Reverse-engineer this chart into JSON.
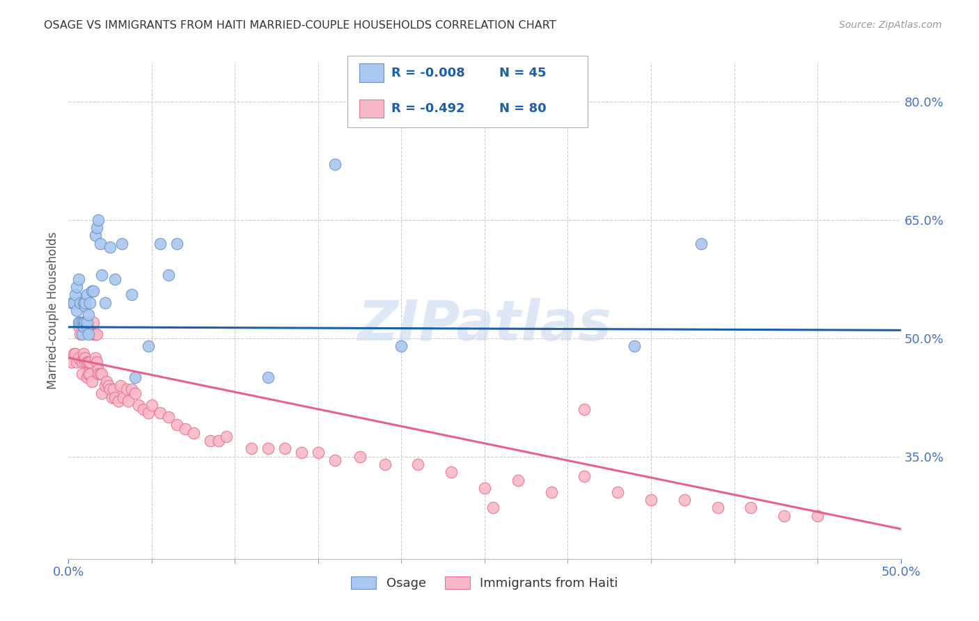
{
  "title": "OSAGE VS IMMIGRANTS FROM HAITI MARRIED-COUPLE HOUSEHOLDS CORRELATION CHART",
  "source": "Source: ZipAtlas.com",
  "ylabel": "Married-couple Households",
  "xlim": [
    0.0,
    0.5
  ],
  "ylim": [
    0.22,
    0.85
  ],
  "xtick_major": [
    0.0,
    0.5
  ],
  "xtick_major_labels": [
    "0.0%",
    "50.0%"
  ],
  "xtick_minor": [
    0.05,
    0.1,
    0.15,
    0.2,
    0.25,
    0.3,
    0.35,
    0.4,
    0.45
  ],
  "ytick_positions": [
    0.35,
    0.5,
    0.65,
    0.8
  ],
  "ytick_labels": [
    "35.0%",
    "50.0%",
    "65.0%",
    "80.0%"
  ],
  "grid_color": "#cccccc",
  "background_color": "#ffffff",
  "legend_r1": "R = -0.008",
  "legend_n1": "N = 45",
  "legend_r2": "R = -0.492",
  "legend_n2": "N = 80",
  "series1_color": "#a8c8f0",
  "series2_color": "#f8b8c8",
  "series1_edge": "#7090c8",
  "series2_edge": "#e87090",
  "trendline1_color": "#1a5fa8",
  "trendline2_color": "#e8608a",
  "watermark": "ZIPatlas",
  "watermark_color": "#c8d8f0",
  "series1_label": "Osage",
  "series2_label": "Immigrants from Haiti",
  "series1_x": [
    0.002,
    0.003,
    0.004,
    0.005,
    0.005,
    0.006,
    0.006,
    0.007,
    0.007,
    0.008,
    0.008,
    0.009,
    0.009,
    0.009,
    0.01,
    0.01,
    0.01,
    0.011,
    0.011,
    0.011,
    0.012,
    0.012,
    0.013,
    0.014,
    0.015,
    0.016,
    0.017,
    0.018,
    0.019,
    0.02,
    0.022,
    0.025,
    0.028,
    0.032,
    0.038,
    0.04,
    0.048,
    0.055,
    0.06,
    0.065,
    0.12,
    0.16,
    0.2,
    0.34,
    0.38
  ],
  "series1_y": [
    0.545,
    0.545,
    0.555,
    0.565,
    0.535,
    0.575,
    0.52,
    0.545,
    0.52,
    0.505,
    0.52,
    0.545,
    0.52,
    0.515,
    0.54,
    0.545,
    0.52,
    0.555,
    0.515,
    0.52,
    0.505,
    0.53,
    0.545,
    0.56,
    0.56,
    0.63,
    0.64,
    0.65,
    0.62,
    0.58,
    0.545,
    0.615,
    0.575,
    0.62,
    0.555,
    0.45,
    0.49,
    0.62,
    0.58,
    0.62,
    0.45,
    0.72,
    0.49,
    0.49,
    0.62
  ],
  "series2_x": [
    0.002,
    0.003,
    0.004,
    0.005,
    0.006,
    0.006,
    0.007,
    0.008,
    0.008,
    0.009,
    0.009,
    0.01,
    0.01,
    0.011,
    0.011,
    0.012,
    0.012,
    0.013,
    0.013,
    0.014,
    0.015,
    0.015,
    0.016,
    0.016,
    0.017,
    0.017,
    0.018,
    0.018,
    0.019,
    0.02,
    0.02,
    0.022,
    0.023,
    0.024,
    0.025,
    0.026,
    0.027,
    0.028,
    0.03,
    0.031,
    0.033,
    0.035,
    0.036,
    0.038,
    0.04,
    0.042,
    0.045,
    0.048,
    0.05,
    0.055,
    0.06,
    0.065,
    0.07,
    0.075,
    0.085,
    0.09,
    0.095,
    0.11,
    0.12,
    0.13,
    0.14,
    0.15,
    0.16,
    0.175,
    0.19,
    0.21,
    0.23,
    0.25,
    0.27,
    0.29,
    0.31,
    0.33,
    0.35,
    0.37,
    0.39,
    0.41,
    0.43,
    0.45,
    0.31,
    0.255
  ],
  "series2_y": [
    0.47,
    0.48,
    0.48,
    0.47,
    0.515,
    0.475,
    0.505,
    0.47,
    0.455,
    0.475,
    0.48,
    0.47,
    0.475,
    0.47,
    0.45,
    0.47,
    0.455,
    0.47,
    0.455,
    0.445,
    0.52,
    0.505,
    0.505,
    0.475,
    0.505,
    0.47,
    0.46,
    0.455,
    0.455,
    0.43,
    0.455,
    0.44,
    0.445,
    0.44,
    0.435,
    0.425,
    0.435,
    0.425,
    0.42,
    0.44,
    0.425,
    0.435,
    0.42,
    0.435,
    0.43,
    0.415,
    0.41,
    0.405,
    0.415,
    0.405,
    0.4,
    0.39,
    0.385,
    0.38,
    0.37,
    0.37,
    0.375,
    0.36,
    0.36,
    0.36,
    0.355,
    0.355,
    0.345,
    0.35,
    0.34,
    0.34,
    0.33,
    0.31,
    0.32,
    0.305,
    0.325,
    0.305,
    0.295,
    0.295,
    0.285,
    0.285,
    0.275,
    0.275,
    0.41,
    0.285
  ],
  "trendline1_x": [
    0.0,
    0.5
  ],
  "trendline1_y": [
    0.514,
    0.51
  ],
  "trendline2_x": [
    0.0,
    0.5
  ],
  "trendline2_y": [
    0.475,
    0.258
  ],
  "axis_color": "#4472c4",
  "title_color": "#333333",
  "ylabel_color": "#555555",
  "tick_color": "#888888"
}
